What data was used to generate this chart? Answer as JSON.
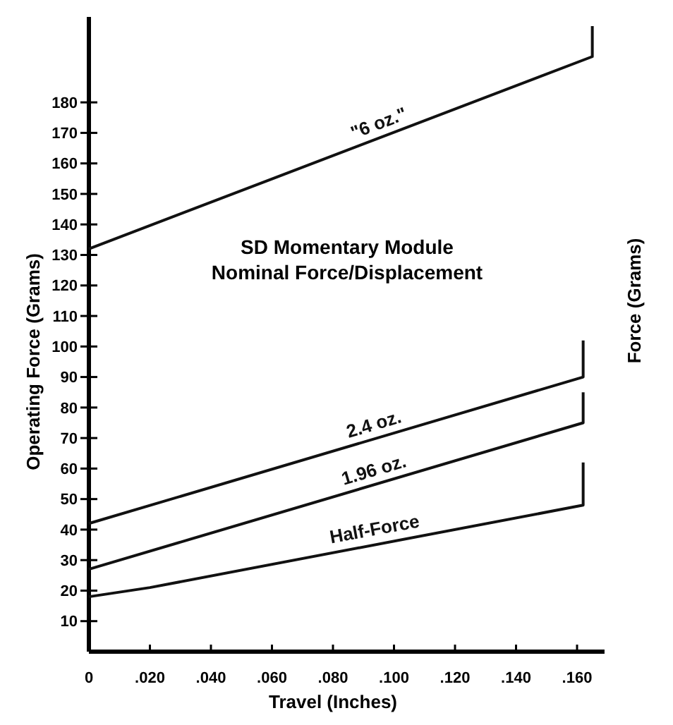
{
  "chart_data": {
    "type": "line",
    "title": "SD Momentary Module\nNominal Force/Displacement",
    "xlabel": "Travel (Inches)",
    "ylabel": "Operating Force (Grams)",
    "y2label": "Force (Grams)",
    "xlim": [
      0,
      0.169
    ],
    "ylim": [
      0,
      208
    ],
    "xticks": [
      {
        "value": 0,
        "label": "0"
      },
      {
        "value": 0.02,
        "label": ".020"
      },
      {
        "value": 0.04,
        "label": ".040"
      },
      {
        "value": 0.06,
        "label": ".060"
      },
      {
        "value": 0.08,
        "label": ".080"
      },
      {
        "value": 0.1,
        "label": ".100"
      },
      {
        "value": 0.12,
        "label": ".120"
      },
      {
        "value": 0.14,
        "label": ".140"
      },
      {
        "value": 0.16,
        "label": ".160"
      }
    ],
    "yticks": [
      10,
      20,
      30,
      40,
      50,
      60,
      70,
      80,
      90,
      100,
      110,
      120,
      130,
      140,
      150,
      160,
      170,
      180
    ],
    "grid": false,
    "marker": "none",
    "line_style": "solid",
    "series": [
      {
        "name": "\"6 oz.\"",
        "color": "#111111",
        "x": [
          0,
          0.165,
          0.165
        ],
        "values": [
          132,
          195,
          205
        ]
      },
      {
        "name": "2.4 oz.",
        "color": "#111111",
        "x": [
          0,
          0.162,
          0.162
        ],
        "values": [
          42,
          90,
          102
        ]
      },
      {
        "name": "1.96 oz.",
        "color": "#111111",
        "x": [
          0,
          0.162,
          0.162
        ],
        "values": [
          27,
          75,
          85
        ]
      },
      {
        "name": "Half-Force",
        "color": "#111111",
        "x": [
          0,
          0.02,
          0.162,
          0.162
        ],
        "values": [
          18,
          21,
          48,
          62
        ]
      }
    ]
  }
}
